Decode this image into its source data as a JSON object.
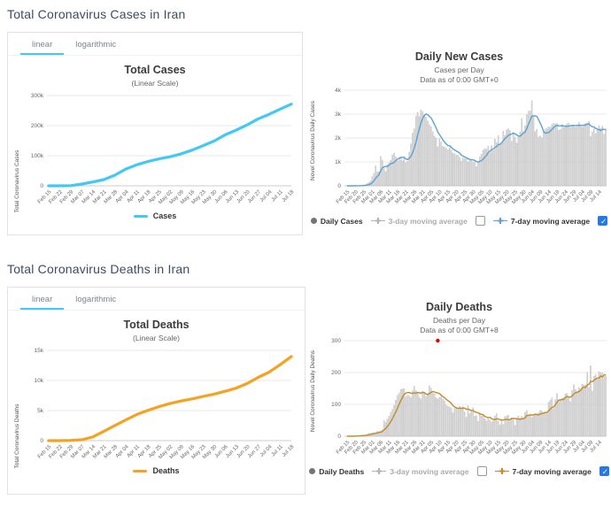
{
  "sections": [
    {
      "heading": "Total Coronavirus Cases in Iran"
    },
    {
      "heading": "Total Coronavirus Deaths in Iran"
    }
  ],
  "tabs": {
    "linear": "linear",
    "logarithmic": "logarithmic"
  },
  "legend_checkboxes": {
    "ma3_checked": false,
    "ma7_checked": true
  },
  "colors": {
    "accent_tab": "#41c8f5",
    "cases_line": "#41c8f5",
    "deaths_line": "#f7a21f",
    "cases_ma7": "#5aa2d4",
    "deaths_ma7": "#c18c28",
    "bars": "#d8d8d8",
    "bar_stroke": "#b5b5b5",
    "checked_checkbox": "#2479e3",
    "annotation_dot": "#e00000",
    "heading_text": "#3d4c60"
  },
  "chart_data": [
    {
      "id": "total-cases",
      "type": "line",
      "title": "Total Cases",
      "subtitle": "(Linear Scale)",
      "ylabel": "Total Coronavirus Cases",
      "legend_label": "Cases",
      "ylim": [
        0,
        300000
      ],
      "yticks": [
        {
          "v": 300000,
          "t": "300k"
        },
        {
          "v": 200000,
          "t": "200k"
        },
        {
          "v": 100000,
          "t": "100k"
        },
        {
          "v": 0,
          "t": "0"
        }
      ],
      "categories": [
        "Feb 15",
        "Feb 22",
        "Feb 29",
        "Mar 07",
        "Mar 14",
        "Mar 21",
        "Mar 28",
        "Apr 04",
        "Apr 11",
        "Apr 18",
        "Apr 25",
        "May 02",
        "May 09",
        "May 16",
        "May 23",
        "May 30",
        "Jun 06",
        "Jun 13",
        "Jun 20",
        "Jun 27",
        "Jul 04",
        "Jul 11",
        "Jul 18"
      ],
      "values": [
        0,
        28,
        593,
        5823,
        12729,
        20610,
        35408,
        55743,
        70029,
        80868,
        89328,
        96448,
        106220,
        118392,
        133521,
        148950,
        169425,
        184955,
        202584,
        222669,
        237878,
        255117,
        271606
      ]
    },
    {
      "id": "daily-cases",
      "type": "bar",
      "title": "Daily New Cases",
      "subtitle_line1": "Cases per Day",
      "subtitle_line2": "Data as of 0:00 GMT+0",
      "ylabel": "Novel Coronavirus Daily Cases",
      "legend": {
        "daily": "Daily Cases",
        "ma3": "3-day moving average",
        "ma7": "7-day moving average"
      },
      "ylim": [
        0,
        4000
      ],
      "yticks": [
        {
          "v": 4000,
          "t": "4k"
        },
        {
          "v": 3000,
          "t": "3k"
        },
        {
          "v": 2000,
          "t": "2k"
        },
        {
          "v": 1000,
          "t": "1k"
        },
        {
          "v": 0,
          "t": "0"
        }
      ],
      "tick_step": 5,
      "tick_labels": [
        "Feb 15",
        "Feb 20",
        "Feb 25",
        "Mar 01",
        "Mar 06",
        "Mar 11",
        "Mar 16",
        "Mar 21",
        "Mar 26",
        "Mar 31",
        "Apr 05",
        "Apr 10",
        "Apr 15",
        "Apr 20",
        "Apr 25",
        "Apr 30",
        "May 05",
        "May 10",
        "May 15",
        "May 20",
        "May 25",
        "May 30",
        "Jun 04",
        "Jun 09",
        "Jun 14",
        "Jun 19",
        "Jun 24",
        "Jun 29",
        "Jul 04",
        "Jul 09",
        "Jul 14"
      ],
      "values": [
        0,
        0,
        0,
        0,
        2,
        3,
        13,
        10,
        15,
        18,
        34,
        44,
        106,
        143,
        205,
        385,
        523,
        835,
        586,
        591,
        1234,
        1076,
        743,
        595,
        881,
        958,
        1075,
        1289,
        1365,
        1209,
        1053,
        1178,
        1192,
        1046,
        1237,
        966,
        1028,
        1411,
        1762,
        2206,
        2389,
        2926,
        3076,
        2901,
        3186,
        3110,
        2987,
        2875,
        2715,
        2560,
        2483,
        2274,
        2089,
        1997,
        1634,
        1972,
        1837,
        1657,
        1617,
        1574,
        1512,
        1606,
        1499,
        1374,
        1343,
        1294,
        1297,
        1194,
        1030,
        1168,
        1134,
        1153,
        991,
        1112,
        1073,
        983,
        1006,
        802,
        976,
        1223,
        1323,
        1485,
        1556,
        1529,
        1656,
        1383,
        1683,
        1481,
        1958,
        1808,
        2102,
        1757,
        1806,
        2294,
        2111,
        2346,
        2392,
        2311,
        1869,
        2180,
        2023,
        1787,
        2080,
        2258,
        2819,
        2282,
        2516,
        2979,
        3117,
        3134,
        3574,
        2886,
        2269,
        2364,
        2043,
        2095,
        2011,
        2238,
        2369,
        2410,
        2472,
        2449,
        2563,
        2612,
        2596,
        2615,
        2322,
        2368,
        2573,
        2445,
        2531,
        2595,
        2628,
        2456,
        2489,
        2536,
        2457,
        2549,
        2652,
        2566,
        2449,
        2560,
        2613,
        2637,
        2691,
        2079,
        2262,
        2397,
        2186,
        2349,
        2521,
        2388,
        2500,
        2166,
        2379
      ]
    },
    {
      "id": "total-deaths",
      "type": "line",
      "title": "Total Deaths",
      "subtitle": "(Linear Scale)",
      "ylabel": "Total Coronavirus Deaths",
      "legend_label": "Deaths",
      "ylim": [
        0,
        15000
      ],
      "yticks": [
        {
          "v": 15000,
          "t": "15k"
        },
        {
          "v": 10000,
          "t": "10k"
        },
        {
          "v": 5000,
          "t": "5k"
        },
        {
          "v": 0,
          "t": "0"
        }
      ],
      "categories": [
        "Feb 15",
        "Feb 22",
        "Feb 29",
        "Mar 07",
        "Mar 14",
        "Mar 21",
        "Mar 28",
        "Apr 04",
        "Apr 11",
        "Apr 18",
        "Apr 25",
        "May 02",
        "May 09",
        "May 16",
        "May 23",
        "May 30",
        "Jun 06",
        "Jun 13",
        "Jun 20",
        "Jun 27",
        "Jul 04",
        "Jul 11",
        "Jul 18"
      ],
      "values": [
        0,
        5,
        43,
        145,
        611,
        1556,
        2517,
        3452,
        4357,
        5031,
        5650,
        6156,
        6589,
        6937,
        7359,
        7734,
        8209,
        8730,
        9507,
        10508,
        11408,
        12635,
        13979
      ]
    },
    {
      "id": "daily-deaths",
      "type": "bar",
      "title": "Daily Deaths",
      "subtitle_line1": "Deaths per Day",
      "subtitle_line2": "Data as of 0:00 GMT+8",
      "ylabel": "Novel Coronavirus Daily Deaths",
      "legend": {
        "daily": "Daily Deaths",
        "ma3": "3-day moving average",
        "ma7": "7-day moving average"
      },
      "ylim": [
        0,
        300
      ],
      "yticks": [
        {
          "v": 300,
          "t": "300"
        },
        {
          "v": 200,
          "t": "200"
        },
        {
          "v": 100,
          "t": "100"
        },
        {
          "v": 0,
          "t": "0"
        }
      ],
      "tick_step": 5,
      "tick_labels": [
        "Feb 15",
        "Feb 20",
        "Feb 25",
        "Mar 01",
        "Mar 06",
        "Mar 11",
        "Mar 16",
        "Mar 21",
        "Mar 26",
        "Mar 31",
        "Apr 05",
        "Apr 10",
        "Apr 15",
        "Apr 20",
        "Apr 25",
        "Apr 30",
        "May 05",
        "May 10",
        "May 15",
        "May 20",
        "May 25",
        "May 30",
        "Jun 04",
        "Jun 09",
        "Jun 14",
        "Jun 19",
        "Jun 24",
        "Jun 29",
        "Jul 04",
        "Jul 09",
        "Jul 14"
      ],
      "annotation": {
        "index": 54,
        "value": 300
      },
      "values": [
        0,
        0,
        0,
        0,
        2,
        0,
        2,
        1,
        3,
        4,
        4,
        3,
        7,
        9,
        9,
        11,
        12,
        11,
        15,
        15,
        17,
        21,
        49,
        43,
        54,
        63,
        75,
        85,
        97,
        113,
        129,
        135,
        147,
        149,
        149,
        123,
        129,
        127,
        122,
        143,
        157,
        144,
        139,
        123,
        117,
        141,
        138,
        124,
        134,
        158,
        151,
        136,
        133,
        121,
        117,
        122,
        125,
        117,
        111,
        98,
        94,
        92,
        89,
        73,
        87,
        91,
        88,
        94,
        90,
        93,
        76,
        60,
        96,
        71,
        80,
        90,
        63,
        65,
        47,
        74,
        63,
        68,
        55,
        48,
        55,
        51,
        45,
        48,
        64,
        71,
        48,
        35,
        51,
        37,
        62,
        64,
        66,
        51,
        58,
        51,
        34,
        57,
        64,
        56,
        63,
        58,
        75,
        81,
        63,
        68,
        59,
        63,
        72,
        70,
        74,
        81,
        79,
        71,
        75,
        71,
        107,
        113,
        120,
        87,
        115,
        134,
        115,
        116,
        119,
        121,
        133,
        134,
        125,
        109,
        144,
        162,
        147,
        141,
        154,
        148,
        163,
        161,
        160,
        200,
        153,
        221,
        142,
        188,
        194,
        179,
        203,
        199,
        198,
        188,
        190
      ]
    }
  ]
}
